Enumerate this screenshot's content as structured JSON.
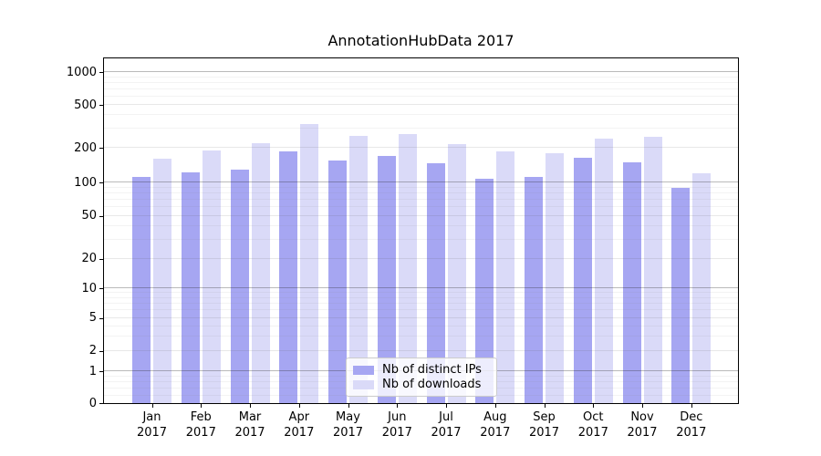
{
  "figure": {
    "background": "#ffffff"
  },
  "chart_data": {
    "type": "bar",
    "title": "AnnotationHubData 2017",
    "categories": [
      "Jan",
      "Feb",
      "Mar",
      "Apr",
      "May",
      "Jun",
      "Jul",
      "Aug",
      "Sep",
      "Oct",
      "Nov",
      "Dec"
    ],
    "category_year": "2017",
    "series": [
      {
        "name": "Nb of distinct IPs",
        "color": "#a6a6f2",
        "values": [
          112,
          124,
          130,
          185,
          155,
          170,
          148,
          108,
          112,
          163,
          150,
          90
        ]
      },
      {
        "name": "Nb of downloads",
        "color": "#dadaf8",
        "values": [
          160,
          190,
          220,
          335,
          260,
          270,
          215,
          186,
          180,
          245,
          255,
          120
        ]
      }
    ],
    "yscale": "symlog",
    "y_ticks": [
      0,
      1,
      2,
      5,
      10,
      20,
      50,
      100,
      200,
      500,
      1000
    ],
    "ylim": [
      0,
      1400
    ],
    "xlabel": "",
    "ylabel": "",
    "grid": true,
    "grid_above_bars": true,
    "legend_position": "lower-center",
    "grid_colors": {
      "major": "rgba(40,40,40,0.32)",
      "mid": "rgba(90,90,90,0.14)",
      "minor": "rgba(120,120,120,0.09)"
    },
    "spine_color": "#000000"
  }
}
